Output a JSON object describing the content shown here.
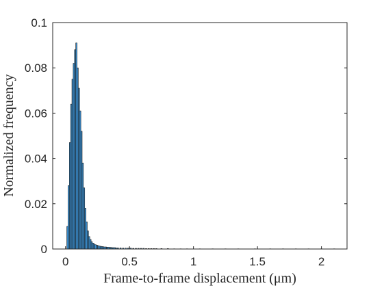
{
  "chart_data": {
    "type": "bar",
    "title": "",
    "xlabel": "Frame-to-frame displacement (μm)",
    "ylabel": "Normalized frequency",
    "xlim": [
      -0.1,
      2.2
    ],
    "ylim": [
      0,
      0.1
    ],
    "xticks": [
      0,
      0.5,
      1,
      1.5,
      2
    ],
    "xtick_labels": [
      "0",
      "0.5",
      "1",
      "1.5",
      "2"
    ],
    "yticks": [
      0,
      0.02,
      0.04,
      0.06,
      0.08,
      0.1
    ],
    "ytick_labels": [
      "0",
      "0.02",
      "0.04",
      "0.06",
      "0.08",
      "0.1"
    ],
    "grid": false,
    "bin_width": 0.01,
    "x": [
      0.015,
      0.025,
      0.035,
      0.045,
      0.055,
      0.065,
      0.075,
      0.085,
      0.095,
      0.105,
      0.115,
      0.125,
      0.135,
      0.145,
      0.155,
      0.165,
      0.175,
      0.185,
      0.195,
      0.205,
      0.215,
      0.225,
      0.235,
      0.245,
      0.255,
      0.265,
      0.275,
      0.285,
      0.295,
      0.305,
      0.315,
      0.325,
      0.335,
      0.345,
      0.355,
      0.365,
      0.375,
      0.385,
      0.395,
      0.41,
      0.43,
      0.45,
      0.47,
      0.49,
      0.51,
      0.53,
      0.55,
      0.57,
      0.59,
      0.61,
      0.63,
      0.65,
      0.67,
      0.69,
      0.71,
      0.75,
      0.8,
      0.85,
      0.9,
      0.95,
      1.05,
      1.15,
      1.25,
      1.35,
      1.48,
      1.6,
      1.7,
      1.8,
      1.9,
      2.0,
      2.1
    ],
    "values": [
      0.01,
      0.028,
      0.047,
      0.064,
      0.075,
      0.082,
      0.088,
      0.091,
      0.08,
      0.071,
      0.061,
      0.052,
      0.038,
      0.027,
      0.018,
      0.012,
      0.008,
      0.0055,
      0.0042,
      0.0032,
      0.0026,
      0.0022,
      0.0019,
      0.0017,
      0.0015,
      0.0013,
      0.0012,
      0.0011,
      0.001,
      0.0009,
      0.0009,
      0.0008,
      0.0008,
      0.0007,
      0.0007,
      0.0006,
      0.0006,
      0.0006,
      0.0005,
      0.0005,
      0.0005,
      0.0004,
      0.0004,
      0.0004,
      0.0004,
      0.0003,
      0.0003,
      0.0003,
      0.0003,
      0.0003,
      0.0002,
      0.0002,
      0.0002,
      0.0002,
      0.0002,
      0.0002,
      0.0002,
      0.0001,
      0.0001,
      0.0001,
      0.0001,
      0.0001,
      0.0001,
      0.0001,
      0.0001,
      0.0001,
      0.0001,
      0.0001,
      0.0001,
      0.0001,
      0.0001
    ]
  }
}
